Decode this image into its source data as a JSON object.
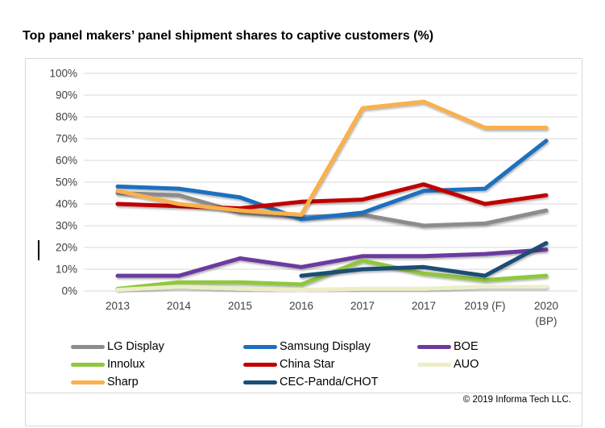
{
  "footer": {
    "copyright": "© 2019 Informa Tech LLC."
  },
  "colors": {
    "gridline": "#d9d9d9",
    "axis_text": "#404040",
    "frame_border": "#d9d9d9",
    "cursor_artifact": "#000000"
  },
  "chart_data": {
    "type": "line",
    "title": "Top panel makers’ panel shipment shares to captive customers (%)",
    "xlabel": "",
    "ylabel": "",
    "categories": [
      "2013",
      "2014",
      "2015",
      "2016",
      "2017",
      "2017",
      "2019 (F)",
      "2020 (BP)"
    ],
    "categories_display": [
      [
        "2013"
      ],
      [
        "2014"
      ],
      [
        "2015"
      ],
      [
        "2016"
      ],
      [
        "2017"
      ],
      [
        "2017"
      ],
      [
        "2019 (F)"
      ],
      [
        "2020",
        "(BP)"
      ]
    ],
    "y_axis": {
      "min": 0,
      "max": 100,
      "step": 10,
      "grid": true,
      "tick_labels": [
        "0%",
        "10%",
        "20%",
        "30%",
        "40%",
        "50%",
        "60%",
        "70%",
        "80%",
        "90%",
        "100%"
      ]
    },
    "legend_position": "bottom",
    "series": [
      {
        "name": "LG Display",
        "color": "#8c8c8c",
        "values": [
          45,
          44,
          36,
          34,
          35,
          30,
          31,
          37
        ]
      },
      {
        "name": "Samsung Display",
        "color": "#1e70bf",
        "values": [
          48,
          47,
          43,
          33,
          36,
          46,
          47,
          69
        ]
      },
      {
        "name": "BOE",
        "color": "#6a3aa0",
        "values": [
          7,
          7,
          15,
          11,
          16,
          16,
          17,
          19
        ]
      },
      {
        "name": "Innolux",
        "color": "#90c83c",
        "values": [
          1,
          4,
          4,
          3,
          14,
          8,
          5,
          7
        ]
      },
      {
        "name": "China Star",
        "color": "#c00000",
        "values": [
          40,
          39,
          38,
          41,
          42,
          49,
          40,
          44
        ]
      },
      {
        "name": "AUO",
        "color": "#edeec8",
        "values": [
          0.5,
          2,
          1,
          0.5,
          1,
          1,
          2,
          2
        ]
      },
      {
        "name": "Sharp",
        "color": "#fab04c",
        "values": [
          46,
          40,
          37,
          35,
          84,
          87,
          75,
          75
        ]
      },
      {
        "name": "CEC-Panda/CHOT",
        "color": "#1b4e74",
        "values": [
          null,
          null,
          null,
          7,
          10,
          11,
          7,
          22
        ]
      }
    ]
  }
}
